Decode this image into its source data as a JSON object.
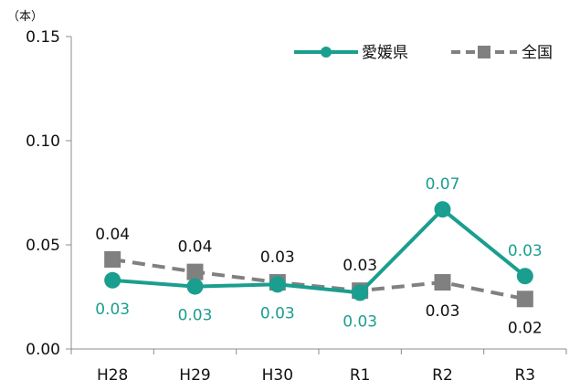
{
  "chart_data": {
    "type": "line",
    "unit_label": "（本）",
    "categories": [
      "H28",
      "H29",
      "H30",
      "R1",
      "R2",
      "R3"
    ],
    "y_ticks": [
      "0.00",
      "0.05",
      "0.10",
      "0.15"
    ],
    "ylim": [
      0,
      0.15
    ],
    "grid": false,
    "legend_position": "top-right",
    "series": [
      {
        "name": "愛媛県",
        "values": [
          0.033,
          0.03,
          0.031,
          0.027,
          0.067,
          0.035
        ],
        "labels": [
          "0.03",
          "0.03",
          "0.03",
          "0.03",
          "0.07",
          "0.03"
        ],
        "color": "#1a9e8f",
        "line_style": "solid",
        "marker": "circle",
        "label_position": [
          "below",
          "below",
          "below",
          "below",
          "above",
          "above"
        ]
      },
      {
        "name": "全国",
        "values": [
          0.043,
          0.037,
          0.032,
          0.028,
          0.032,
          0.024
        ],
        "labels": [
          "0.04",
          "0.04",
          "0.03",
          "0.03",
          "0.03",
          "0.02"
        ],
        "color": "#808080",
        "line_style": "dashed",
        "marker": "square",
        "label_position": [
          "above",
          "above",
          "above",
          "above",
          "below",
          "below"
        ]
      }
    ]
  }
}
